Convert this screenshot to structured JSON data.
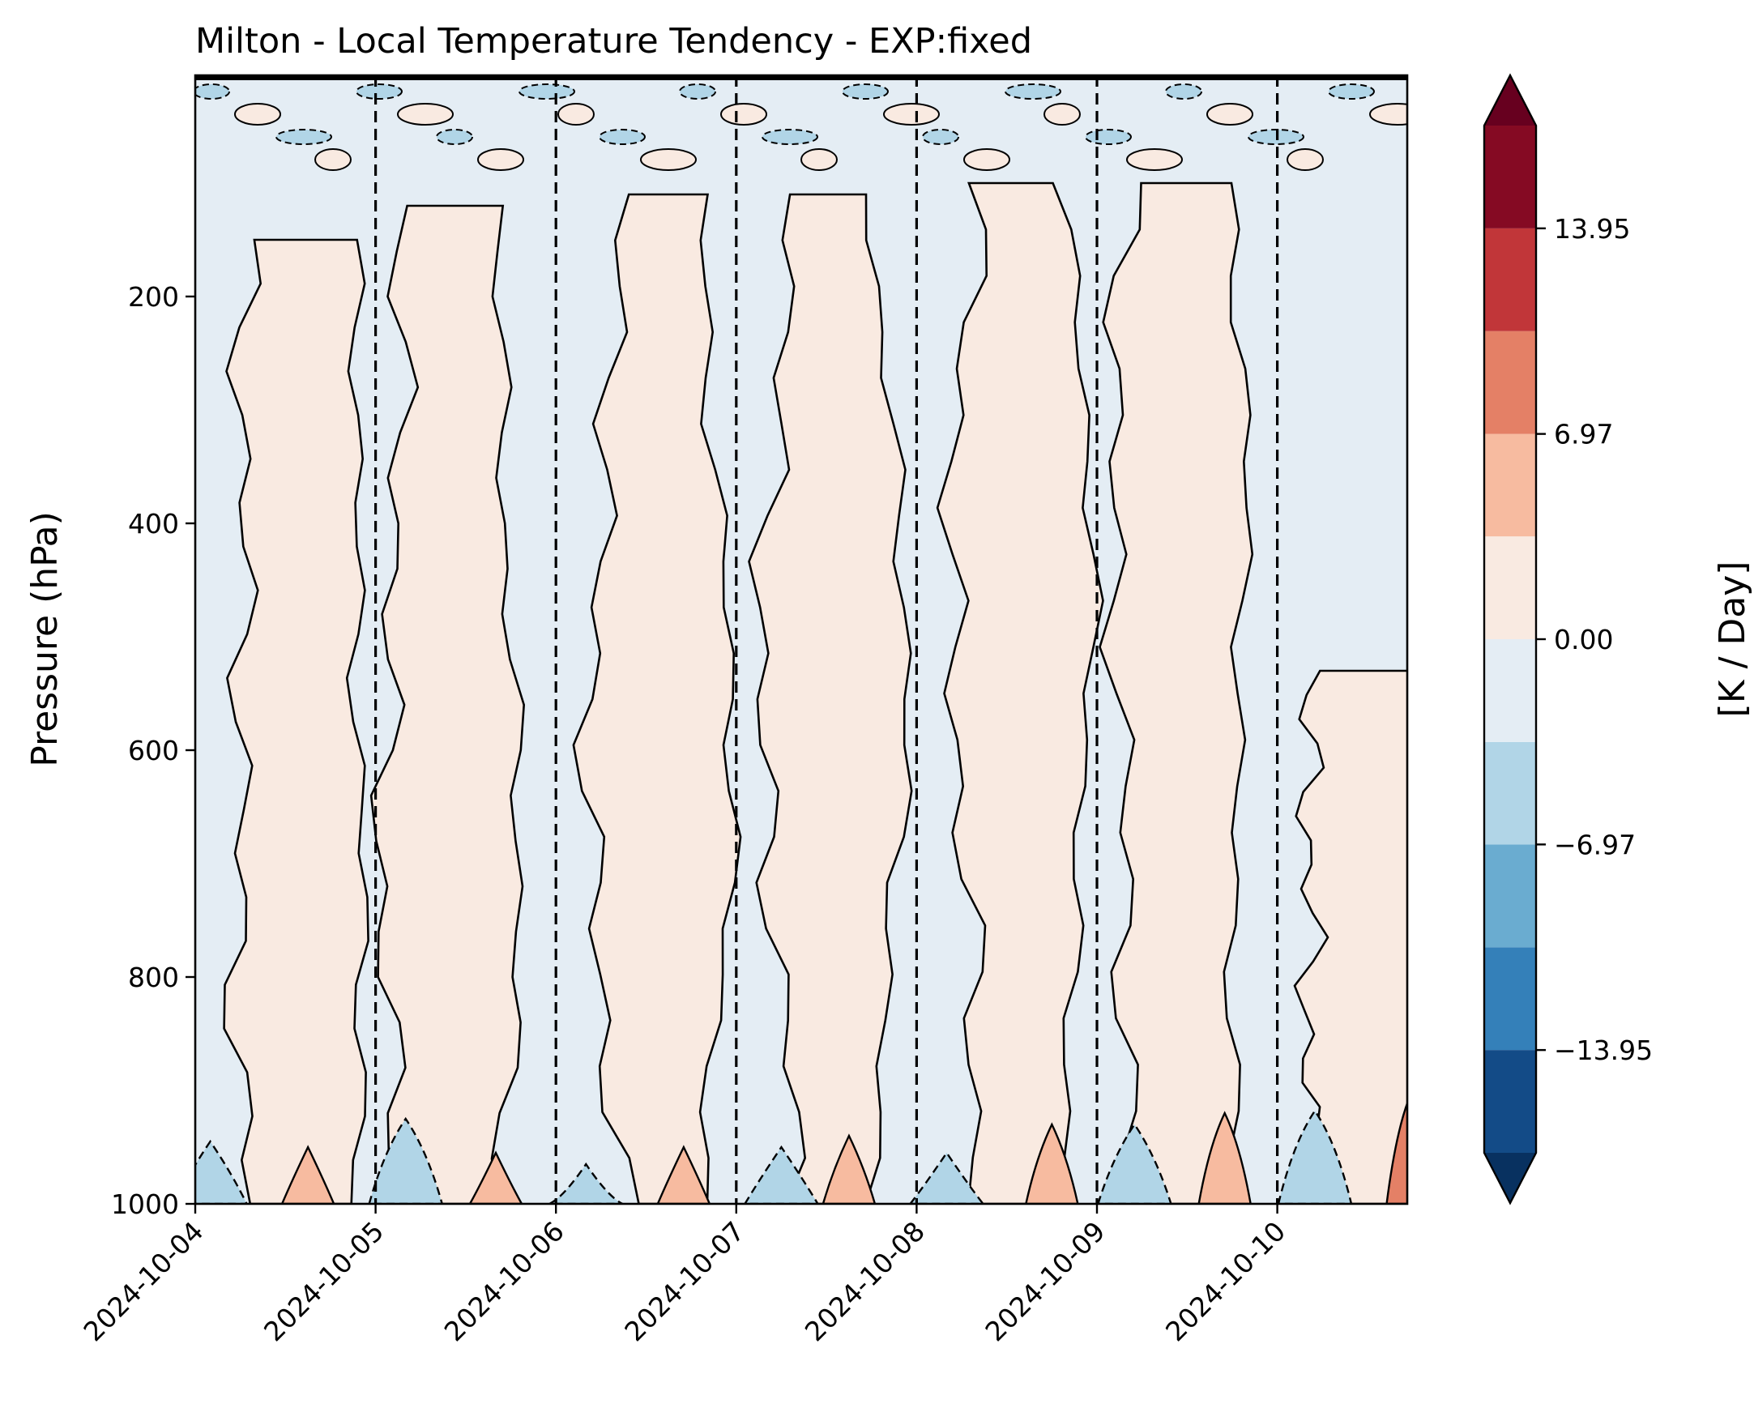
{
  "chart_data": {
    "type": "contourf",
    "title": "Milton - Local Temperature Tendency - EXP:fixed",
    "ylabel": "Pressure (hPa)",
    "xlabel": "",
    "x_axis": {
      "type": "date",
      "range": [
        "2024-10-04",
        "2024-10-10T18:00"
      ],
      "tick_labels": [
        "2024-10-04",
        "2024-10-05",
        "2024-10-06",
        "2024-10-07",
        "2024-10-08",
        "2024-10-09",
        "2024-10-10"
      ],
      "dashed_vertical_lines_at": [
        "2024-10-05",
        "2024-10-06",
        "2024-10-07",
        "2024-10-08",
        "2024-10-09",
        "2024-10-10"
      ]
    },
    "y_axis": {
      "inverted": true,
      "range": [
        1000,
        5
      ],
      "ticks": [
        200,
        400,
        600,
        800,
        1000
      ],
      "tick_labels": [
        "200",
        "400",
        "600",
        "800",
        "1000"
      ]
    },
    "colorbar": {
      "label": "[K / Day]",
      "extend": "both",
      "levels": [
        -17.44,
        -13.95,
        -10.46,
        -6.97,
        -3.49,
        0.0,
        3.49,
        6.97,
        10.46,
        13.95,
        17.44
      ],
      "tick_values": [
        -13.95,
        -6.97,
        0.0,
        6.97,
        13.95
      ],
      "tick_labels": [
        "−13.95",
        "−6.97",
        "0.00",
        "6.97",
        "13.95"
      ],
      "colors": [
        "#083160",
        "#134b87",
        "#3480b9",
        "#6aacd0",
        "#b1d5e7",
        "#e4edf4",
        "#f9eae1",
        "#f7bba0",
        "#e48066",
        "#c13639",
        "#850a23",
        "#67001f"
      ],
      "cmap": "RdBu_r"
    },
    "regions": [
      {
        "name": "warm-band",
        "sign": "positive",
        "center_date": "2024-10-04T14:00",
        "pressure_range": [
          150,
          1000
        ]
      },
      {
        "name": "warm-band",
        "sign": "positive",
        "center_date": "2024-10-05T10:00",
        "pressure_range": [
          120,
          1000
        ]
      },
      {
        "name": "warm-band",
        "sign": "positive",
        "center_date": "2024-10-06T14:00",
        "pressure_range": [
          110,
          1000
        ]
      },
      {
        "name": "warm-band",
        "sign": "positive",
        "center_date": "2024-10-07T13:00",
        "pressure_range": [
          110,
          1000
        ]
      },
      {
        "name": "warm-band",
        "sign": "positive",
        "center_date": "2024-10-08T14:00",
        "pressure_range": [
          100,
          1000
        ]
      },
      {
        "name": "warm-band",
        "sign": "positive",
        "center_date": "2024-10-09T11:00",
        "pressure_range": [
          100,
          1000
        ]
      },
      {
        "name": "warm-band",
        "sign": "positive",
        "center_date": "2024-10-10T12:00",
        "pressure_range": [
          530,
          1000
        ]
      },
      {
        "name": "warm-surface-max",
        "sign": "positive",
        "center_date": "2024-10-04T15:00",
        "pressure_range": [
          950,
          1000
        ],
        "approx_value": 5
      },
      {
        "name": "warm-surface-max",
        "sign": "positive",
        "center_date": "2024-10-05T16:00",
        "pressure_range": [
          955,
          1000
        ],
        "approx_value": 5
      },
      {
        "name": "warm-surface-max",
        "sign": "positive",
        "center_date": "2024-10-06T17:00",
        "pressure_range": [
          950,
          1000
        ],
        "approx_value": 5
      },
      {
        "name": "warm-surface-max",
        "sign": "positive",
        "center_date": "2024-10-07T15:00",
        "pressure_range": [
          940,
          1000
        ],
        "approx_value": 5
      },
      {
        "name": "warm-surface-max",
        "sign": "positive",
        "center_date": "2024-10-08T18:00",
        "pressure_range": [
          930,
          1000
        ],
        "approx_value": 5
      },
      {
        "name": "warm-surface-max",
        "sign": "positive",
        "center_date": "2024-10-09T17:00",
        "pressure_range": [
          920,
          1000
        ],
        "approx_value": 5
      },
      {
        "name": "warm-surface-max",
        "sign": "positive",
        "center_date": "2024-10-10T18:00",
        "pressure_range": [
          900,
          1000
        ],
        "approx_value": 8
      },
      {
        "name": "cold-surface-min",
        "sign": "negative",
        "center_date": "2024-10-04T02:00",
        "pressure_range": [
          945,
          1000
        ],
        "approx_value": -5
      },
      {
        "name": "cold-surface-min",
        "sign": "negative",
        "center_date": "2024-10-05T04:00",
        "pressure_range": [
          925,
          1000
        ],
        "approx_value": -5
      },
      {
        "name": "cold-surface-min",
        "sign": "negative",
        "center_date": "2024-10-06T04:00",
        "pressure_range": [
          965,
          1000
        ],
        "approx_value": -5
      },
      {
        "name": "cold-surface-min",
        "sign": "negative",
        "center_date": "2024-10-07T06:00",
        "pressure_range": [
          950,
          1000
        ],
        "approx_value": -5
      },
      {
        "name": "cold-surface-min",
        "sign": "negative",
        "center_date": "2024-10-08T04:00",
        "pressure_range": [
          955,
          1000
        ],
        "approx_value": -5
      },
      {
        "name": "cold-surface-min",
        "sign": "negative",
        "center_date": "2024-10-09T05:00",
        "pressure_range": [
          930,
          1000
        ],
        "approx_value": -5
      },
      {
        "name": "cold-surface-min",
        "sign": "negative",
        "center_date": "2024-10-10T05:00",
        "pressure_range": [
          918,
          1000
        ],
        "approx_value": -5
      }
    ]
  }
}
